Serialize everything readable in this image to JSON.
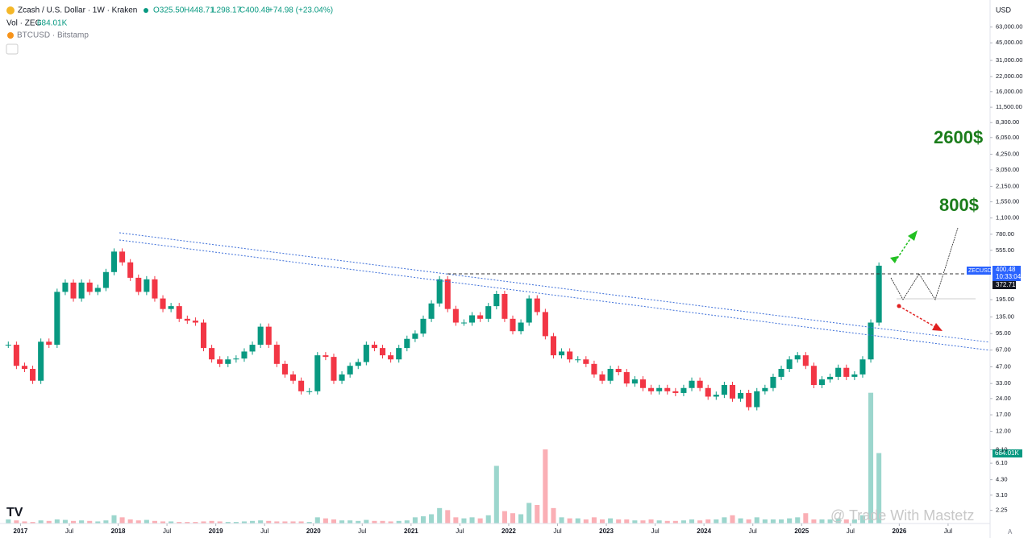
{
  "header": {
    "title": "Zcash / U.S. Dollar · 1W · Kraken",
    "open": "O325.50",
    "high": "H448.71",
    "low": "L298.17",
    "close": "C400.48",
    "change": "+74.98 (+23.04%)",
    "volume_label": "Vol · ZEC",
    "volume_value": "684.01K",
    "compare": "BTCUSD · Bitstamp"
  },
  "price_scale": {
    "currency": "USD",
    "symbol": "ZECUSD",
    "last": "400.48",
    "countdown": "10:33:04",
    "marker": "372.71",
    "volume": "684.01K",
    "auto": "A"
  },
  "annotations": {
    "target_high": "2600$",
    "target_mid": "800$"
  },
  "watermark": "@ Trade With Mastetz",
  "chart_data": {
    "type": "candlestick",
    "log_scale": true,
    "up_color": "#089981",
    "down_color": "#f23645",
    "x": [
      "2016-11",
      "2016-12",
      "2017-01",
      "2017-02",
      "2017-03",
      "2017-04",
      "2017-05",
      "2017-06",
      "2017-07",
      "2017-08",
      "2017-09",
      "2017-10",
      "2017-11",
      "2017-12",
      "2018-01",
      "2018-02",
      "2018-03",
      "2018-04",
      "2018-05",
      "2018-06",
      "2018-07",
      "2018-08",
      "2018-09",
      "2018-10",
      "2018-11",
      "2018-12",
      "2019-01",
      "2019-02",
      "2019-03",
      "2019-04",
      "2019-05",
      "2019-06",
      "2019-07",
      "2019-08",
      "2019-09",
      "2019-10",
      "2019-11",
      "2019-12",
      "2020-01",
      "2020-02",
      "2020-03",
      "2020-04",
      "2020-05",
      "2020-06",
      "2020-07",
      "2020-08",
      "2020-09",
      "2020-10",
      "2020-11",
      "2020-12",
      "2021-01",
      "2021-02",
      "2021-03",
      "2021-04",
      "2021-05",
      "2021-06",
      "2021-07",
      "2021-08",
      "2021-09",
      "2021-10",
      "2021-11",
      "2021-12",
      "2022-01",
      "2022-02",
      "2022-03",
      "2022-04",
      "2022-05",
      "2022-06",
      "2022-07",
      "2022-08",
      "2022-09",
      "2022-10",
      "2022-11",
      "2022-12",
      "2023-01",
      "2023-02",
      "2023-03",
      "2023-04",
      "2023-05",
      "2023-06",
      "2023-07",
      "2023-08",
      "2023-09",
      "2023-10",
      "2023-11",
      "2023-12",
      "2024-01",
      "2024-02",
      "2024-03",
      "2024-04",
      "2024-05",
      "2024-06",
      "2024-07",
      "2024-08",
      "2024-09",
      "2024-10",
      "2024-11",
      "2024-12",
      "2025-01",
      "2025-02",
      "2025-03",
      "2025-04",
      "2025-05",
      "2025-06",
      "2025-07",
      "2025-08",
      "2025-09",
      "2025-10"
    ],
    "series": [
      {
        "name": "ZECUSD",
        "values": [
          75,
          48,
          45,
          35,
          80,
          75,
          230,
          280,
          200,
          280,
          230,
          250,
          350,
          540,
          430,
          310,
          230,
          300,
          200,
          160,
          170,
          130,
          125,
          120,
          70,
          55,
          50,
          55,
          56,
          65,
          75,
          110,
          75,
          50,
          40,
          35,
          28,
          28,
          60,
          58,
          35,
          40,
          48,
          52,
          75,
          70,
          60,
          55,
          70,
          85,
          95,
          130,
          180,
          300,
          160,
          120,
          120,
          140,
          130,
          170,
          220,
          130,
          100,
          120,
          200,
          150,
          90,
          60,
          65,
          55,
          55,
          50,
          40,
          35,
          45,
          42,
          33,
          36,
          30,
          28,
          30,
          28,
          27,
          30,
          35,
          30,
          25,
          26,
          32,
          24,
          27,
          20,
          28,
          30,
          38,
          45,
          55,
          60,
          48,
          32,
          36,
          38,
          46,
          38,
          40,
          55,
          120,
          400.48
        ]
      },
      {
        "name": "Vol · ZEC",
        "values": [
          40,
          30,
          20,
          15,
          30,
          25,
          40,
          35,
          25,
          30,
          25,
          20,
          30,
          80,
          60,
          40,
          30,
          35,
          25,
          20,
          20,
          15,
          15,
          15,
          20,
          25,
          20,
          15,
          15,
          20,
          25,
          30,
          25,
          20,
          20,
          20,
          20,
          15,
          60,
          50,
          40,
          30,
          30,
          25,
          35,
          25,
          25,
          20,
          25,
          30,
          60,
          70,
          90,
          150,
          130,
          60,
          50,
          60,
          50,
          80,
          560,
          120,
          100,
          90,
          200,
          180,
          720,
          150,
          60,
          50,
          50,
          40,
          60,
          40,
          50,
          40,
          40,
          30,
          30,
          40,
          30,
          25,
          25,
          30,
          40,
          30,
          40,
          40,
          60,
          80,
          50,
          40,
          60,
          40,
          40,
          40,
          50,
          60,
          100,
          40,
          40,
          40,
          50,
          40,
          40,
          80,
          1270,
          684.01
        ]
      }
    ],
    "vlim": [
      0,
      1330
    ],
    "xlim": [
      2016.79,
      2026.93
    ],
    "xticks": [
      2017,
      {
        "value": 2017.5,
        "label": "Jul"
      },
      2018,
      {
        "value": 2018.5,
        "label": "Jul"
      },
      2019,
      {
        "value": 2019.5,
        "label": "Jul"
      },
      2020,
      {
        "value": 2020.5,
        "label": "Jul"
      },
      2021,
      {
        "value": 2021.5,
        "label": "Jul"
      },
      2022,
      {
        "value": 2022.5,
        "label": "Jul"
      },
      2023,
      {
        "value": 2023.5,
        "label": "Jul"
      },
      2024,
      {
        "value": 2024.5,
        "label": "Jul"
      },
      2025,
      {
        "value": 2025.5,
        "label": "Jul"
      },
      2026,
      {
        "value": 2026.5,
        "label": "Jul"
      }
    ],
    "ylim": [
      1.7,
      111500
    ],
    "yticks": [
      {
        "value": 63000,
        "label": "63,000.00"
      },
      {
        "value": 45000,
        "label": "45,000.00"
      },
      {
        "value": 31000,
        "label": "31,000.00"
      },
      {
        "value": 22000,
        "label": "22,000.00"
      },
      {
        "value": 16000,
        "label": "16,000.00"
      },
      {
        "value": 11500,
        "label": "11,500.00"
      },
      {
        "value": 8300,
        "label": "8,300.00"
      },
      {
        "value": 6050,
        "label": "6,050.00"
      },
      {
        "value": 4250,
        "label": "4,250.00"
      },
      {
        "value": 3050,
        "label": "3,050.00"
      },
      {
        "value": 2150,
        "label": "2,150.00"
      },
      {
        "value": 1550,
        "label": "1,550.00"
      },
      {
        "value": 1100,
        "label": "1,100.00"
      },
      {
        "value": 780,
        "label": "780.00"
      },
      {
        "value": 555,
        "label": "555.00"
      },
      {
        "value": 195,
        "label": "195.00"
      },
      {
        "value": 135,
        "label": "135.00"
      },
      {
        "value": 95,
        "label": "95.00"
      },
      {
        "value": 67,
        "label": "67.00"
      },
      {
        "value": 47,
        "label": "47.00"
      },
      {
        "value": 33,
        "label": "33.00"
      },
      {
        "value": 24,
        "label": "24.00"
      },
      {
        "value": 17,
        "label": "17.00"
      },
      {
        "value": 12,
        "label": "12.00"
      },
      {
        "value": 8.1,
        "label": "8.10"
      },
      {
        "value": 6.1,
        "label": "6.10"
      },
      {
        "value": 4.3,
        "label": "4.30"
      },
      {
        "value": 3.1,
        "label": "3.10"
      },
      {
        "value": 2.25,
        "label": "2.25"
      }
    ]
  }
}
